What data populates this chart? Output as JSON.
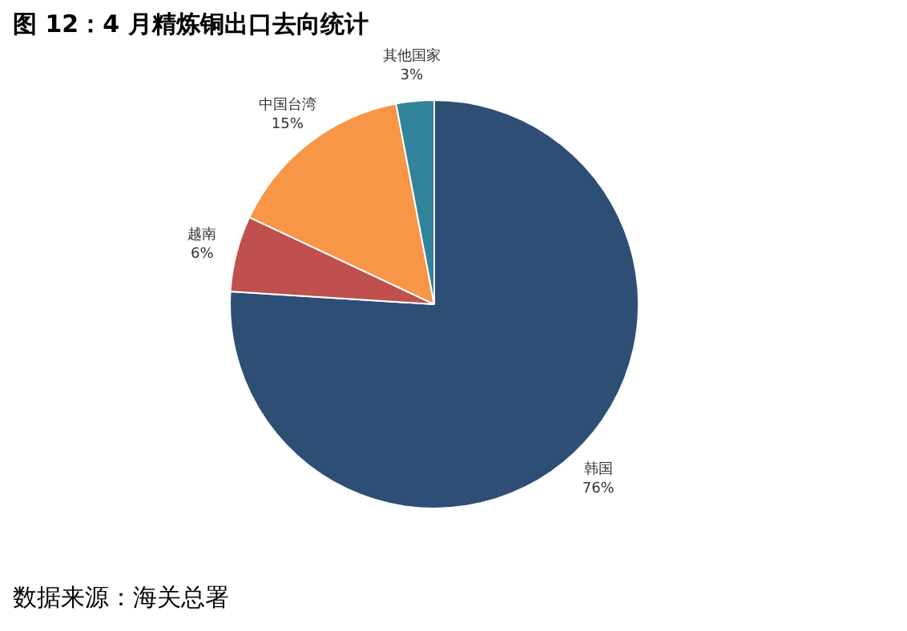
{
  "chart_data": {
    "type": "pie",
    "title": "图 12：4 月精炼铜出口去向统计",
    "categories": [
      "韩国",
      "越南",
      "中国台湾",
      "其他国家"
    ],
    "values": [
      76,
      6,
      15,
      3
    ],
    "colors": [
      "#2e4e76",
      "#c0504d",
      "#f79646",
      "#31849b"
    ],
    "value_labels": [
      "76%",
      "6%",
      "15%",
      "3%"
    ],
    "annotations": [
      "数据来源：海关总署"
    ]
  }
}
